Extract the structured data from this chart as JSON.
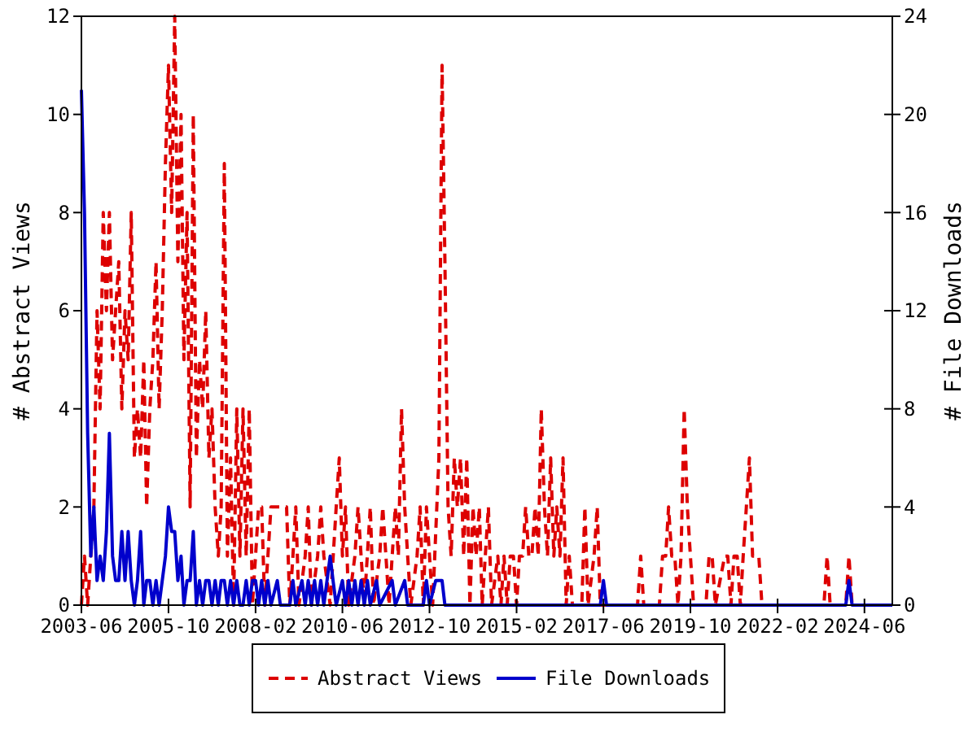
{
  "chart_data": {
    "type": "line",
    "ylabel": "# Abstract Views",
    "y2label": "# File Downloads",
    "xlim": [
      "2003-06",
      "2025-03"
    ],
    "xticks": [
      {
        "value": "2003-06",
        "label": "2003-06"
      },
      {
        "value": "2005-10",
        "label": "2005-10"
      },
      {
        "value": "2008-02",
        "label": "2008-02"
      },
      {
        "value": "2010-06",
        "label": "2010-06"
      },
      {
        "value": "2012-10",
        "label": "2012-10"
      },
      {
        "value": "2015-02",
        "label": "2015-02"
      },
      {
        "value": "2017-06",
        "label": "2017-06"
      },
      {
        "value": "2019-10",
        "label": "2019-10"
      },
      {
        "value": "2022-02",
        "label": "2022-02"
      },
      {
        "value": "2024-06",
        "label": "2024-06"
      }
    ],
    "ylim": [
      0,
      12
    ],
    "yticks": [
      0,
      2,
      4,
      6,
      8,
      10,
      12
    ],
    "y2lim": [
      0,
      24
    ],
    "y2ticks": [
      0,
      4,
      8,
      12,
      16,
      20,
      24
    ],
    "grid": false,
    "legend": "bottom",
    "marker": "none",
    "series": [
      {
        "name": "Abstract Views",
        "color": "#dd0000",
        "line_style": "dashed",
        "x": [
          "2003-06",
          "2003-07",
          "2003-08",
          "2003-09",
          "2003-10",
          "2003-11",
          "2003-12",
          "2004-01",
          "2004-02",
          "2004-03",
          "2004-04",
          "2004-05",
          "2004-06",
          "2004-07",
          "2004-08",
          "2004-09",
          "2004-10",
          "2004-11",
          "2004-12",
          "2005-01",
          "2005-02",
          "2005-03",
          "2005-04",
          "2005-05",
          "2005-06",
          "2005-07",
          "2005-08",
          "2005-09",
          "2005-10",
          "2005-11",
          "2005-12",
          "2006-01",
          "2006-02",
          "2006-03",
          "2006-04",
          "2006-05",
          "2006-06",
          "2006-07",
          "2006-08",
          "2006-09",
          "2006-10",
          "2006-11",
          "2006-12",
          "2007-01",
          "2007-02",
          "2007-03",
          "2007-04",
          "2007-05",
          "2007-06",
          "2007-07",
          "2007-08",
          "2007-09",
          "2007-10",
          "2007-11",
          "2007-12",
          "2008-01",
          "2008-02",
          "2008-03",
          "2008-04",
          "2008-05",
          "2008-06",
          "2008-07",
          "2008-12",
          "2009-01",
          "2009-02",
          "2009-03",
          "2009-04",
          "2009-06",
          "2009-07",
          "2009-08",
          "2009-10",
          "2009-11",
          "2009-12",
          "2010-02",
          "2010-04",
          "2010-05",
          "2010-06",
          "2010-07",
          "2010-08",
          "2010-10",
          "2010-11",
          "2010-12",
          "2011-01",
          "2011-03",
          "2011-04",
          "2011-06",
          "2011-07",
          "2011-08",
          "2011-09",
          "2011-11",
          "2011-12",
          "2012-01",
          "2012-02",
          "2012-03",
          "2012-04",
          "2012-06",
          "2012-07",
          "2012-08",
          "2012-09",
          "2012-10",
          "2012-11",
          "2013-01",
          "2013-02",
          "2013-03",
          "2013-04",
          "2013-05",
          "2013-06",
          "2013-07",
          "2013-08",
          "2013-09",
          "2013-10",
          "2013-11",
          "2013-12",
          "2014-01",
          "2014-02",
          "2014-03",
          "2014-05",
          "2014-06",
          "2014-08",
          "2014-09",
          "2014-10",
          "2014-11",
          "2014-12",
          "2015-01",
          "2015-02",
          "2015-03",
          "2015-04",
          "2015-05",
          "2015-06",
          "2015-07",
          "2015-08",
          "2015-09",
          "2015-10",
          "2015-11",
          "2015-12",
          "2016-01",
          "2016-02",
          "2016-03",
          "2016-04",
          "2016-05",
          "2016-06",
          "2016-07",
          "2016-08",
          "2016-11",
          "2016-12",
          "2017-01",
          "2017-03",
          "2017-04",
          "2017-05",
          "2018-05",
          "2018-06",
          "2018-07",
          "2018-12",
          "2019-01",
          "2019-02",
          "2019-03",
          "2019-04",
          "2019-05",
          "2019-06",
          "2019-07",
          "2019-08",
          "2019-09",
          "2019-10",
          "2019-11",
          "2020-03",
          "2020-04",
          "2020-05",
          "2020-06",
          "2020-09",
          "2020-10",
          "2020-11",
          "2020-12",
          "2021-01",
          "2021-02",
          "2021-03",
          "2021-04",
          "2021-05",
          "2021-06",
          "2021-07",
          "2021-08",
          "2021-09",
          "2023-05",
          "2023-06",
          "2023-07",
          "2023-12",
          "2024-01",
          "2024-02",
          "2025-03"
        ],
        "values": [
          0,
          1,
          0,
          1,
          2,
          6,
          4,
          8,
          6,
          8,
          5,
          6,
          7,
          4,
          6,
          5,
          8,
          3,
          4,
          3,
          5,
          2,
          4,
          5,
          7,
          4,
          6,
          9,
          11,
          8,
          12,
          7,
          10,
          5,
          8,
          2,
          10,
          3,
          5,
          4,
          6,
          3,
          4,
          2,
          1,
          2,
          9,
          1,
          3,
          0,
          4,
          1,
          4,
          1,
          4,
          0,
          1,
          2,
          2,
          0,
          1,
          2,
          2,
          0,
          1,
          2,
          0,
          1,
          2,
          0,
          1,
          2,
          1,
          0,
          2,
          3,
          1,
          2,
          0,
          1,
          2,
          1,
          0,
          2,
          0,
          1,
          2,
          1,
          0,
          2,
          1,
          4,
          2,
          1,
          0,
          1,
          2,
          0,
          2,
          1,
          0,
          3,
          11,
          7,
          2,
          1,
          3,
          2,
          3,
          1,
          3,
          0,
          2,
          1,
          2,
          0,
          2,
          0,
          1,
          0,
          1,
          0,
          1,
          1,
          0,
          1,
          1,
          2,
          1,
          1,
          2,
          1,
          4,
          2,
          1,
          3,
          1,
          2,
          1,
          3,
          0,
          1,
          0,
          0,
          2,
          0,
          1,
          2,
          0,
          0,
          1,
          0,
          0,
          1,
          1,
          2,
          1,
          1,
          0,
          1,
          4,
          2,
          1,
          0,
          0,
          1,
          1,
          0,
          1,
          1,
          0,
          1,
          1,
          0,
          1,
          2,
          3,
          1,
          1,
          1,
          0,
          0,
          1,
          0,
          0,
          1,
          0,
          0
        ]
      },
      {
        "name": "File Downloads",
        "color": "#0000cc",
        "line_style": "solid",
        "axis": "y2",
        "x": [
          "2003-06",
          "2003-07",
          "2003-08",
          "2003-09",
          "2003-10",
          "2003-11",
          "2003-12",
          "2004-01",
          "2004-02",
          "2004-03",
          "2004-04",
          "2004-05",
          "2004-06",
          "2004-07",
          "2004-08",
          "2004-09",
          "2004-10",
          "2004-11",
          "2004-12",
          "2005-01",
          "2005-02",
          "2005-03",
          "2005-04",
          "2005-05",
          "2005-06",
          "2005-07",
          "2005-08",
          "2005-09",
          "2005-10",
          "2005-11",
          "2005-12",
          "2006-01",
          "2006-02",
          "2006-03",
          "2006-04",
          "2006-05",
          "2006-06",
          "2006-07",
          "2006-08",
          "2006-09",
          "2006-10",
          "2006-11",
          "2006-12",
          "2007-01",
          "2007-02",
          "2007-03",
          "2007-04",
          "2007-05",
          "2007-06",
          "2007-07",
          "2007-08",
          "2007-09",
          "2007-10",
          "2007-11",
          "2007-12",
          "2008-01",
          "2008-02",
          "2008-03",
          "2008-04",
          "2008-05",
          "2008-06",
          "2008-07",
          "2008-09",
          "2008-10",
          "2009-01",
          "2009-02",
          "2009-03",
          "2009-05",
          "2009-06",
          "2009-07",
          "2009-08",
          "2009-09",
          "2009-10",
          "2009-11",
          "2009-12",
          "2010-01",
          "2010-02",
          "2010-03",
          "2010-04",
          "2010-06",
          "2010-07",
          "2010-08",
          "2010-09",
          "2010-10",
          "2010-11",
          "2010-12",
          "2011-01",
          "2011-02",
          "2011-03",
          "2011-05",
          "2011-06",
          "2011-10",
          "2011-11",
          "2012-02",
          "2012-03",
          "2012-08",
          "2012-09",
          "2012-10",
          "2012-12",
          "2013-01",
          "2013-02",
          "2013-03",
          "2017-05",
          "2017-06",
          "2017-07",
          "2023-12",
          "2024-01",
          "2024-02",
          "2025-03"
        ],
        "values": [
          21,
          16,
          7,
          2,
          4,
          1,
          2,
          1,
          3,
          7,
          2,
          1,
          1,
          3,
          1,
          3,
          1,
          0,
          1,
          3,
          0,
          1,
          1,
          0,
          1,
          0,
          1,
          2,
          4,
          3,
          3,
          1,
          2,
          0,
          1,
          1,
          3,
          0,
          1,
          0,
          1,
          1,
          0,
          1,
          0,
          1,
          1,
          0,
          1,
          0,
          1,
          0,
          0,
          1,
          0,
          1,
          1,
          0,
          1,
          0,
          1,
          0,
          1,
          0,
          0,
          1,
          0,
          1,
          0,
          1,
          0,
          1,
          0,
          1,
          0,
          1,
          2,
          1,
          0,
          1,
          0,
          1,
          0,
          1,
          0,
          1,
          0,
          1,
          0,
          1,
          0,
          1,
          0,
          1,
          0,
          0,
          1,
          0,
          1,
          1,
          1,
          0,
          0,
          1,
          0,
          0,
          1,
          0,
          0
        ]
      }
    ]
  }
}
